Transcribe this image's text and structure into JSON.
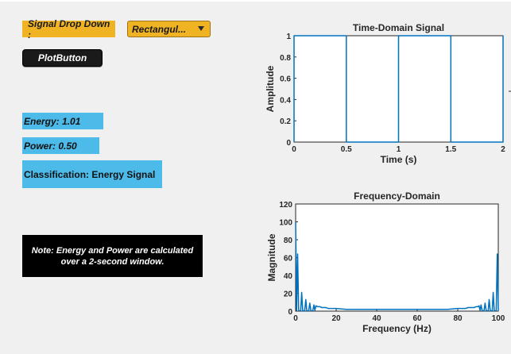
{
  "controls": {
    "signal_label": "Signal Drop Down :",
    "dropdown_value": "Rectangul...",
    "plot_button": "PlotButton"
  },
  "results": {
    "energy": "Energy: 1.01",
    "power": "Power: 0.50",
    "classification": "Classification: Energy Signal",
    "note_line1": "Note: Energy and Power are calculated",
    "note_line2": "over a 2-second window."
  },
  "colors": {
    "orange": "#f0b323",
    "blue_box": "#4dbbea",
    "plot_line": "#0072bd"
  },
  "chart_data": [
    {
      "type": "line",
      "title": "Time-Domain Signal",
      "xlabel": "Time (s)",
      "ylabel": "Amplitude",
      "xlim": [
        0,
        2
      ],
      "ylim": [
        0,
        1
      ],
      "xticks": [
        "0",
        "0.5",
        "1",
        "1.5",
        "2"
      ],
      "yticks": [
        "0",
        "0.2",
        "0.4",
        "0.6",
        "0.8",
        "1"
      ],
      "series": [
        {
          "x": [
            0,
            0,
            0.5,
            0.5,
            1,
            1,
            1.5,
            1.5,
            2,
            2
          ],
          "y": [
            0,
            1,
            1,
            0,
            0,
            1,
            1,
            0,
            0,
            1
          ]
        }
      ]
    },
    {
      "type": "line",
      "title": "Frequency-Domain",
      "xlabel": "Frequency (Hz)",
      "ylabel": "Magnitude",
      "xlim": [
        0,
        100
      ],
      "ylim": [
        0,
        120
      ],
      "xticks": [
        "0",
        "20",
        "40",
        "60",
        "80",
        "100"
      ],
      "yticks": [
        "0",
        "20",
        "40",
        "60",
        "80",
        "100",
        "120"
      ],
      "series": [
        {
          "x": [
            0,
            0.5,
            1,
            1.5,
            2,
            2.5,
            3,
            3.5,
            4,
            4.5,
            5,
            5.5,
            6,
            6.5,
            7,
            7.5,
            8,
            8.5,
            9,
            9.5,
            10,
            11,
            12,
            13,
            14,
            15,
            16,
            18,
            20,
            25,
            30,
            35,
            40,
            45,
            50,
            55,
            60,
            65,
            70,
            75,
            80,
            82,
            84,
            85,
            86,
            88,
            89,
            90,
            90.5,
            91,
            91.5,
            92,
            92.5,
            93,
            93.5,
            94,
            94.5,
            95,
            95.5,
            96,
            96.5,
            97,
            97.5,
            98,
            98.5,
            99,
            99.5,
            100
          ],
          "y": [
            100,
            1,
            64,
            1,
            0,
            1,
            21,
            1,
            0,
            1,
            13,
            1,
            0,
            1,
            9,
            1,
            0,
            1,
            7,
            1,
            6,
            5,
            5,
            4,
            4,
            4,
            3,
            3,
            3,
            2,
            2,
            2,
            2,
            2,
            2,
            2,
            2,
            2,
            2,
            2,
            3,
            3,
            3,
            4,
            4,
            4,
            5,
            5,
            6,
            1,
            7,
            1,
            0,
            1,
            9,
            1,
            0,
            1,
            13,
            1,
            0,
            1,
            21,
            1,
            0,
            1,
            64,
            1
          ]
        }
      ]
    }
  ]
}
